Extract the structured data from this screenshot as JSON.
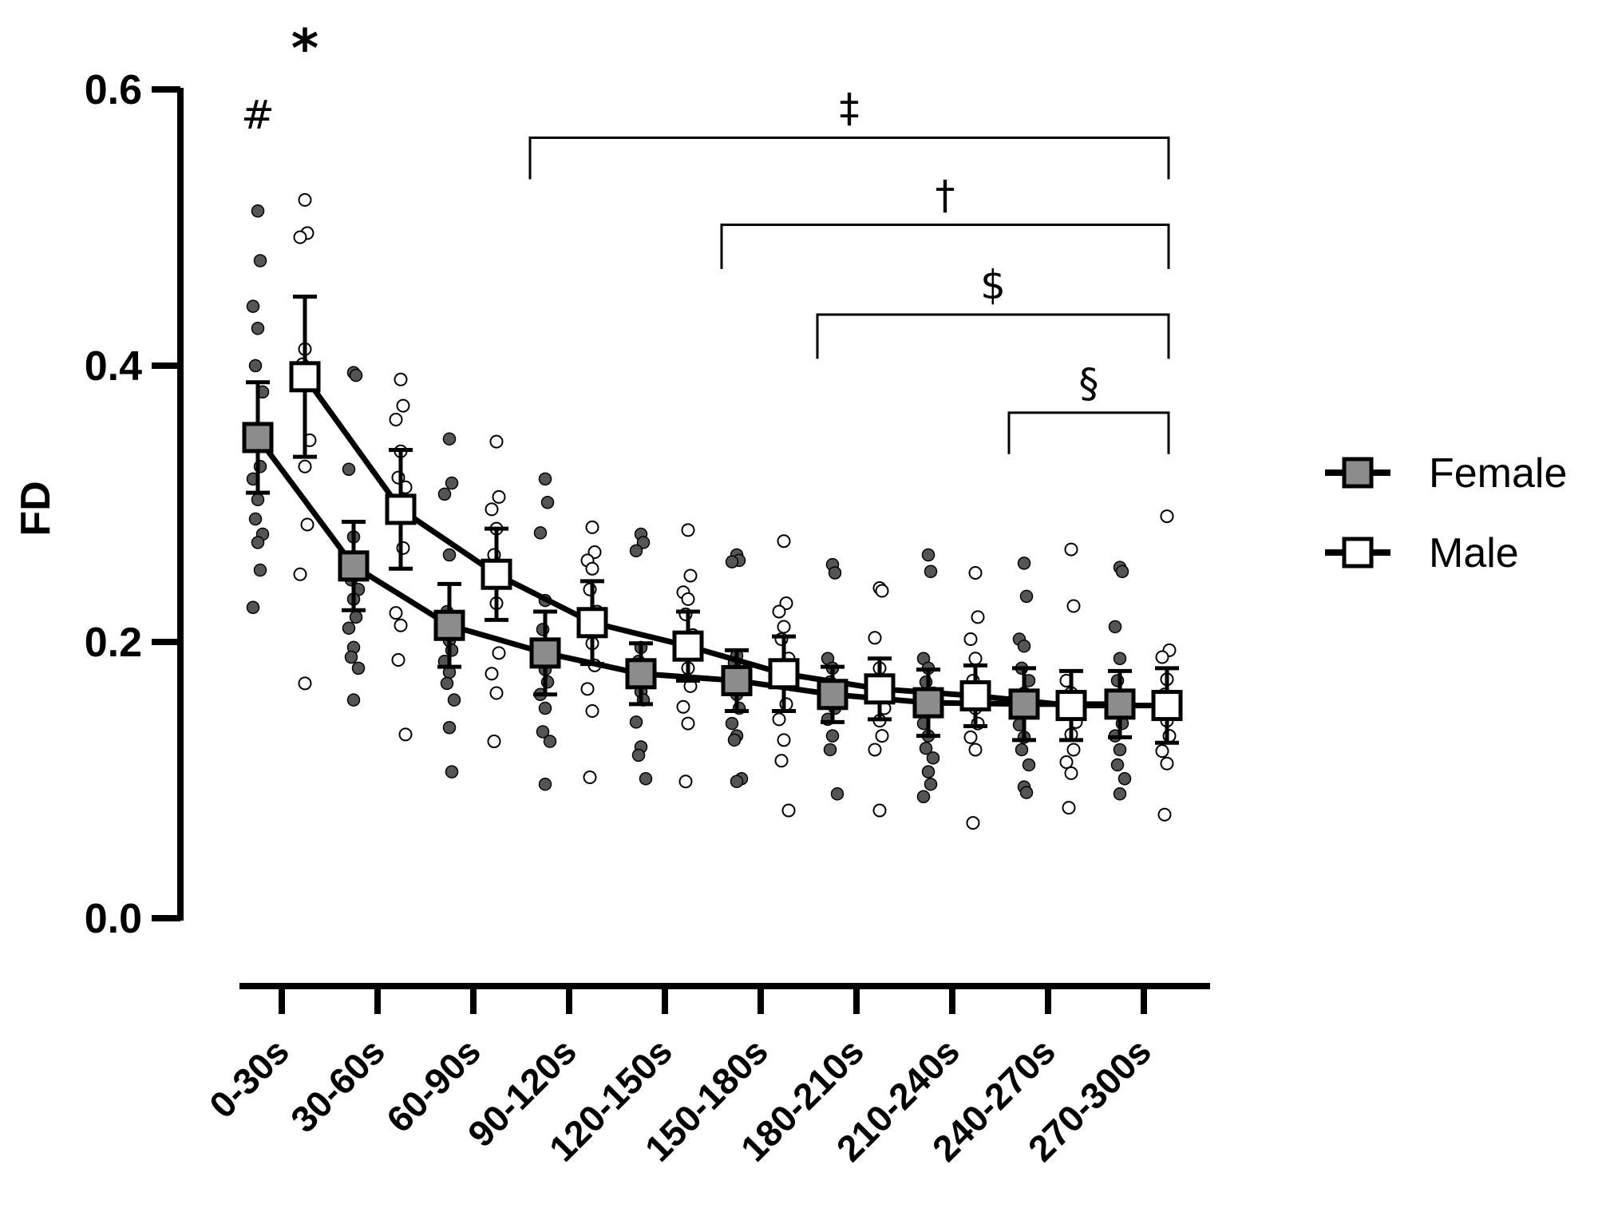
{
  "chart_data": {
    "type": "line",
    "title": "",
    "xlabel": "",
    "ylabel": "FD",
    "ylim": [
      0,
      0.6
    ],
    "yticks": [
      "0.0",
      "0.2",
      "0.4",
      "0.6"
    ],
    "yticks_values": [
      0,
      0.2,
      0.4,
      0.6
    ],
    "categories": [
      "0-30s",
      "30-60s",
      "60-90s",
      "90-120s",
      "120-150s",
      "150-180s",
      "180-210s",
      "210-240s",
      "240-270s",
      "270-300s"
    ],
    "legend_position": "right",
    "grid": false,
    "series": [
      {
        "name": "Female",
        "marker": "square-filled",
        "color": "#8c8c8c",
        "point_color": "#555555",
        "mean": [
          0.348,
          0.255,
          0.212,
          0.192,
          0.177,
          0.172,
          0.162,
          0.156,
          0.155,
          0.155
        ],
        "error": [
          0.04,
          0.032,
          0.03,
          0.03,
          0.022,
          0.022,
          0.02,
          0.024,
          0.026,
          0.024
        ],
        "points": [
          [
            0.512,
            0.476,
            0.443,
            0.427,
            0.4,
            0.381,
            0.352,
            0.327,
            0.318,
            0.303,
            0.289,
            0.278,
            0.272,
            0.252,
            0.225
          ],
          [
            0.395,
            0.393,
            0.325,
            0.276,
            0.245,
            0.238,
            0.231,
            0.218,
            0.21,
            0.196,
            0.189,
            0.181,
            0.158
          ],
          [
            0.347,
            0.315,
            0.307,
            0.263,
            0.222,
            0.21,
            0.201,
            0.194,
            0.186,
            0.178,
            0.17,
            0.158,
            0.138,
            0.106
          ],
          [
            0.318,
            0.301,
            0.279,
            0.23,
            0.209,
            0.195,
            0.18,
            0.171,
            0.162,
            0.152,
            0.135,
            0.128,
            0.097
          ],
          [
            0.278,
            0.272,
            0.266,
            0.196,
            0.186,
            0.174,
            0.164,
            0.158,
            0.142,
            0.124,
            0.118,
            0.101
          ],
          [
            0.263,
            0.259,
            0.258,
            0.19,
            0.185,
            0.173,
            0.162,
            0.152,
            0.141,
            0.132,
            0.129,
            0.101,
            0.099
          ],
          [
            0.256,
            0.25,
            0.188,
            0.181,
            0.171,
            0.162,
            0.158,
            0.152,
            0.144,
            0.132,
            0.122,
            0.09
          ],
          [
            0.263,
            0.251,
            0.188,
            0.181,
            0.171,
            0.163,
            0.156,
            0.15,
            0.141,
            0.132,
            0.123,
            0.116,
            0.106,
            0.097,
            0.088
          ],
          [
            0.257,
            0.233,
            0.202,
            0.197,
            0.181,
            0.172,
            0.163,
            0.152,
            0.14,
            0.131,
            0.122,
            0.111,
            0.095,
            0.091
          ],
          [
            0.254,
            0.251,
            0.211,
            0.188,
            0.172,
            0.161,
            0.15,
            0.141,
            0.132,
            0.122,
            0.111,
            0.101,
            0.09
          ]
        ]
      },
      {
        "name": "Male",
        "marker": "square-open",
        "color": "#ffffff",
        "point_color": "#ffffff",
        "mean": [
          0.392,
          0.296,
          0.249,
          0.214,
          0.197,
          0.177,
          0.166,
          0.161,
          0.154,
          0.154
        ],
        "error": [
          0.058,
          0.043,
          0.033,
          0.03,
          0.025,
          0.027,
          0.022,
          0.022,
          0.025,
          0.027
        ],
        "points": [
          [
            0.52,
            0.496,
            0.493,
            0.412,
            0.401,
            0.346,
            0.327,
            0.285,
            0.249,
            0.17
          ],
          [
            0.39,
            0.371,
            0.361,
            0.338,
            0.319,
            0.312,
            0.291,
            0.268,
            0.221,
            0.212,
            0.187,
            0.133
          ],
          [
            0.345,
            0.305,
            0.296,
            0.282,
            0.263,
            0.243,
            0.228,
            0.192,
            0.177,
            0.163,
            0.128
          ],
          [
            0.283,
            0.265,
            0.259,
            0.253,
            0.238,
            0.222,
            0.199,
            0.183,
            0.166,
            0.15,
            0.102
          ],
          [
            0.281,
            0.248,
            0.236,
            0.231,
            0.22,
            0.205,
            0.181,
            0.168,
            0.153,
            0.141,
            0.099
          ],
          [
            0.273,
            0.228,
            0.222,
            0.211,
            0.202,
            0.188,
            0.172,
            0.155,
            0.144,
            0.129,
            0.114,
            0.078
          ],
          [
            0.239,
            0.237,
            0.203,
            0.181,
            0.165,
            0.152,
            0.143,
            0.132,
            0.122,
            0.078
          ],
          [
            0.25,
            0.218,
            0.202,
            0.188,
            0.172,
            0.165,
            0.152,
            0.141,
            0.131,
            0.122,
            0.069
          ],
          [
            0.267,
            0.226,
            0.172,
            0.163,
            0.152,
            0.142,
            0.133,
            0.122,
            0.113,
            0.105,
            0.08
          ],
          [
            0.291,
            0.194,
            0.189,
            0.173,
            0.162,
            0.152,
            0.143,
            0.132,
            0.121,
            0.112,
            0.075
          ]
        ]
      }
    ],
    "annotations": [
      {
        "symbol": "#",
        "category": "0-30s",
        "series": "Female",
        "y": 0.582
      },
      {
        "symbol": "*",
        "category": "0-30s",
        "series": "Male",
        "y": 0.627
      },
      {
        "symbol": "‡",
        "from": "90-120s",
        "to": "270-300s",
        "y": 0.565,
        "drop_to": 0.535
      },
      {
        "symbol": "†",
        "from": "150-180s",
        "to": "270-300s",
        "y": 0.502,
        "drop_to": 0.47
      },
      {
        "symbol": "$",
        "from": "180-210s",
        "to": "270-300s",
        "y": 0.437,
        "drop_to": 0.405
      },
      {
        "symbol": "§",
        "from": "240-270s",
        "to": "270-300s",
        "y": 0.366,
        "drop_to": 0.336
      }
    ]
  }
}
